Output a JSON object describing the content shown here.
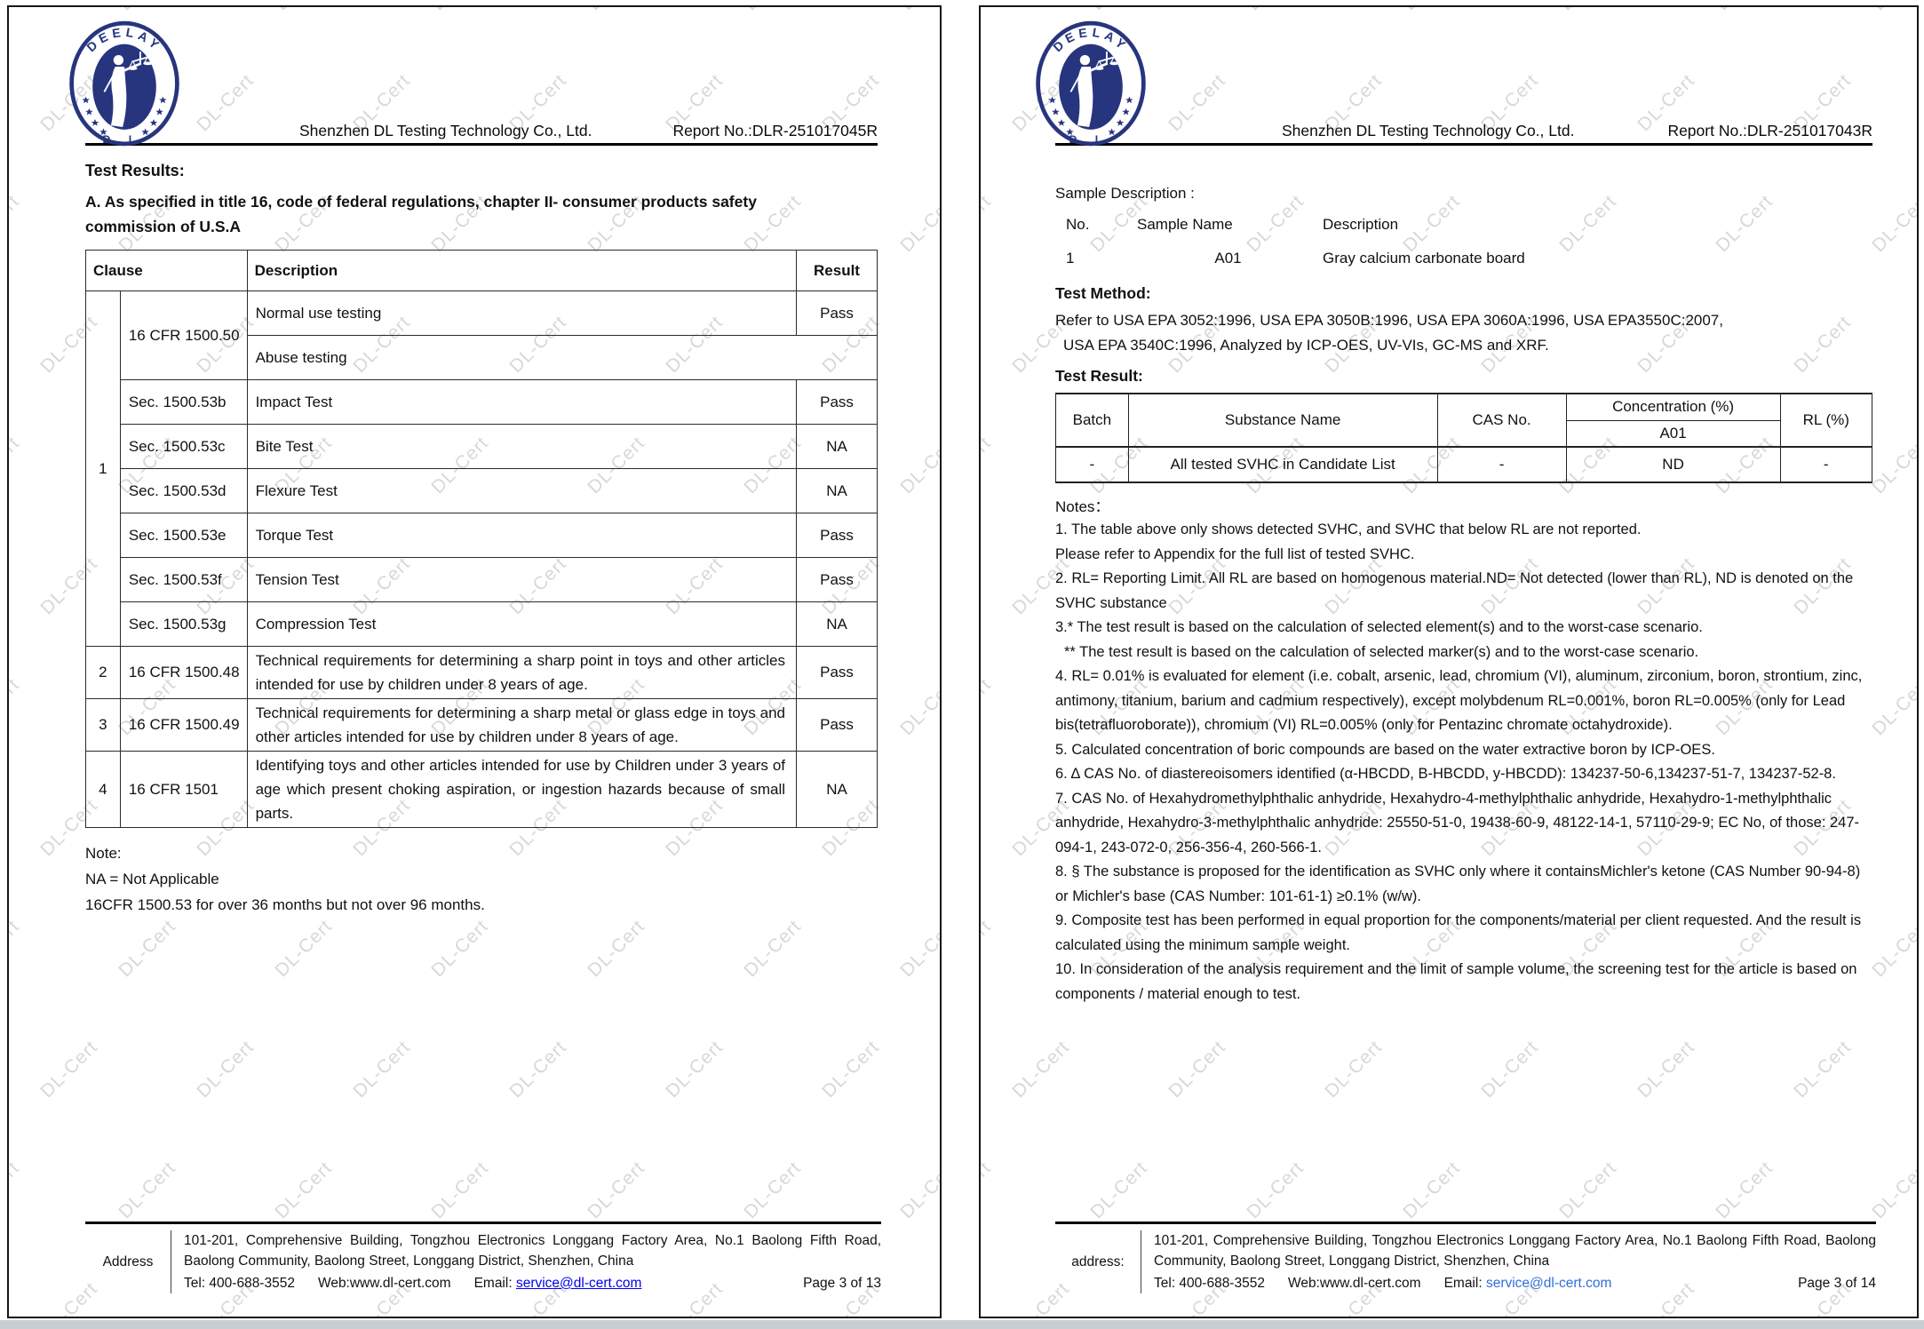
{
  "colors": {
    "navy": "#27357e",
    "link_blue": "#0000ee",
    "link_blue_light": "#2f6fd9",
    "watermark_gray": "#d8d8d8"
  },
  "watermark": {
    "text": "DL-Cert"
  },
  "logo": {
    "arc_text": "DEELAY",
    "bottom_text": "D L"
  },
  "page_left": {
    "company": "Shenzhen DL Testing Technology Co., Ltd.",
    "report_no": "Report No.:DLR-251017045R",
    "title": "Test Results:",
    "section_heading_line1": "A. As specified in title 16, code of federal regulations, chapter II- consumer products safety",
    "section_heading_line2": "commission of U.S.A",
    "table": {
      "header": {
        "clause": "Clause",
        "description": "Description",
        "result": "Result"
      },
      "rows": [
        {
          "clause": "1",
          "code": "16 CFR 1500.50",
          "desc": "Normal use testing",
          "result": "Pass"
        },
        {
          "desc": "Abuse testing",
          "result": ""
        },
        {
          "code": "Sec. 1500.53b",
          "desc": "Impact Test",
          "result": "Pass"
        },
        {
          "code": "Sec. 1500.53c",
          "desc": "Bite Test",
          "result": "NA"
        },
        {
          "code": "Sec. 1500.53d",
          "desc": "Flexure Test",
          "result": "NA"
        },
        {
          "code": "Sec. 1500.53e",
          "desc": "Torque Test",
          "result": "Pass"
        },
        {
          "code": "Sec. 1500.53f",
          "desc": "Tension Test",
          "result": "Pass"
        },
        {
          "code": "Sec. 1500.53g",
          "desc": "Compression Test",
          "result": "NA"
        },
        {
          "clause": "2",
          "code": "16 CFR 1500.48",
          "desc": "Technical requirements for determining a sharp point in toys and other articles intended for use by children under 8 years of age.",
          "result": "Pass"
        },
        {
          "clause": "3",
          "code": "16 CFR 1500.49",
          "desc": "Technical requirements for determining a sharp metal or glass edge in toys and other articles intended for use by children under 8 years of age.",
          "result": "Pass"
        },
        {
          "clause": "4",
          "code": "16 CFR 1501",
          "desc": "Identifying toys and other articles intended for use by Children under 3 years of age which present choking aspiration, or ingestion hazards because of small parts.",
          "result": "NA"
        }
      ]
    },
    "note": {
      "title": "Note:",
      "line1": "NA = Not Applicable",
      "line2": "16CFR 1500.53 for over 36 months but not over 96 months."
    },
    "footer": {
      "label": "Address",
      "address": "101-201, Comprehensive Building, Tongzhou Electronics Longgang Factory Area, No.1 Baolong Fifth Road, Baolong Community, Baolong Street, Longgang District, Shenzhen, China",
      "tel": "Tel: 400-688-3552",
      "web": "Web:www.dl-cert.com",
      "email_label": "Email:",
      "email": "service@dl-cert.com",
      "page": "Page 3 of 13"
    }
  },
  "page_right": {
    "company": "Shenzhen DL Testing Technology Co., Ltd.",
    "report_no": "Report No.:DLR-251017043R",
    "sample": {
      "title": "Sample Description :",
      "h_no": "No.",
      "h_name": "Sample Name",
      "h_desc": "Description",
      "no": "1",
      "name": "A01",
      "desc": "Gray calcium carbonate board"
    },
    "method": {
      "title": "Test Method:",
      "line1": "Refer to USA EPA 3052:1996, USA EPA 3050B:1996, USA EPA 3060A:1996, USA EPA3550C:2007,",
      "line2": "USA EPA 3540C:1996, Analyzed by ICP-OES, UV-VIs, GC-MS and XRF."
    },
    "result": {
      "title": "Test Result:",
      "h_batch": "Batch",
      "h_substance": "Substance Name",
      "h_cas": "CAS No.",
      "h_conc": "Concentration (%)",
      "h_sample": "A01",
      "h_rl": "RL (%)",
      "row": {
        "batch": "-",
        "substance": "All tested SVHC in Candidate List",
        "cas": "-",
        "conc": "ND",
        "rl": "-"
      }
    },
    "notes_title": "Notes：",
    "notes": [
      "1. The table above only shows detected SVHC, and SVHC that below RL are not reported.",
      "Please refer to Appendix for the full list of tested SVHC.",
      "2. RL= Reporting Limit. All RL are based on homogenous material.ND= Not detected (lower than RL), ND is denoted on the SVHC substance",
      "3.* The test result is based on the calculation of selected element(s) and to the worst-case scenario.",
      "** The test result is based on the calculation of selected marker(s) and to the worst-case scenario.",
      "4. RL= 0.01% is evaluated for element (i.e. cobalt, arsenic, lead, chromium (VI), aluminum, zirconium, boron, strontium, zinc, antimony, titanium, barium and cadmium respectively), except molybdenum RL=0.001%, boron RL=0.005% (only for Lead bis(tetrafluoroborate)), chromium (VI) RL=0.005% (only for Pentazinc chromate octahydroxide).",
      "5. Calculated concentration of boric compounds are based on the water extractive boron by ICP-OES.",
      "6. Δ CAS No. of diastereoisomers identified (α-HBCDD, B-HBCDD, y-HBCDD): 134237-50-6,134237-51-7, 134237-52-8.",
      "7. CAS No. of Hexahydromethylphthalic anhydride, Hexahydro-4-methylphthalic anhydride, Hexahydro-1-methylphthalic anhydride, Hexahydro-3-methylphthalic anhydride: 25550-51-0, 19438-60-9, 48122-14-1, 57110-29-9; EC No, of those: 247-094-1, 243-072-0, 256-356-4, 260-566-1.",
      "8. § The substance is proposed for the identification as SVHC only where it containsMichler's ketone (CAS Number 90-94-8) or Michler's base (CAS Number: 101-61-1) ≥0.1% (w/w).",
      "9. Composite test has been performed in equal proportion for the components/material per client requested. And the result is calculated using the minimum sample weight.",
      "10. In consideration of the analysis requirement and the limit of sample volume, the screening test for the article is based on components / material enough to test."
    ],
    "footer": {
      "label": "address:",
      "address": "101-201, Comprehensive Building, Tongzhou Electronics Longgang Factory Area, No.1 Baolong Fifth Road, Baolong Community, Baolong Street, Longgang District, Shenzhen, China",
      "tel": "Tel: 400-688-3552",
      "web": "Web:www.dl-cert.com",
      "email_label": "Email:",
      "email": "service@dl-cert.com",
      "page": "Page 3 of 14"
    }
  }
}
